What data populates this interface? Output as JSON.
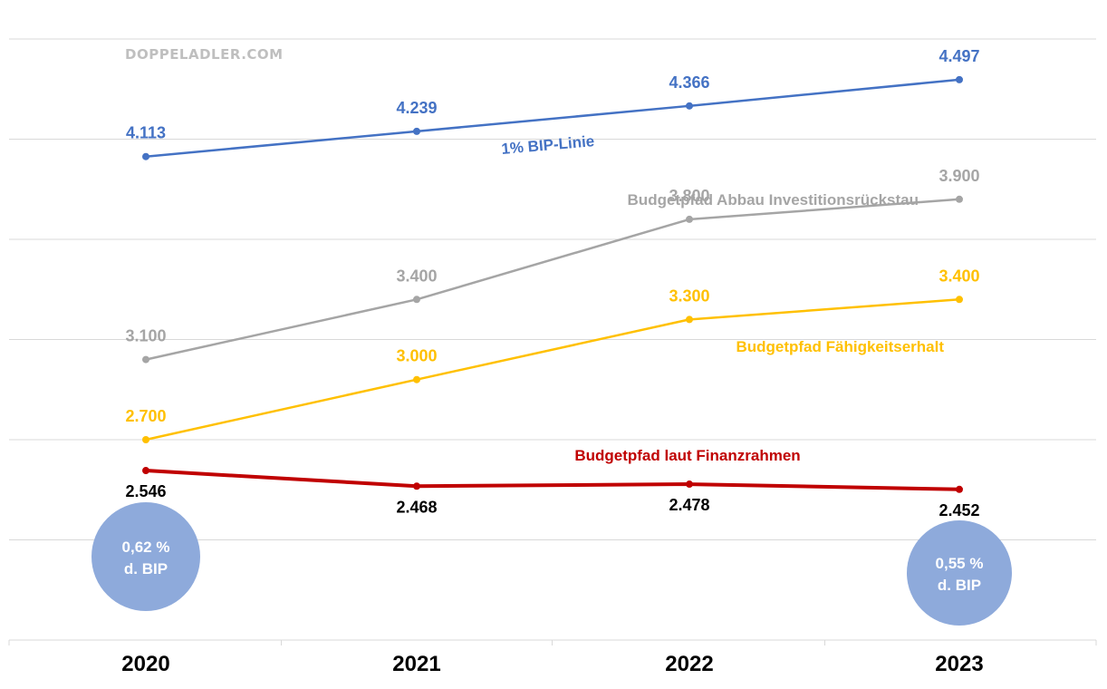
{
  "watermark": "DOPPELADLER.COM",
  "chart_data": {
    "type": "line",
    "title": "",
    "xlabel": "",
    "ylabel": "",
    "categories": [
      "2020",
      "2021",
      "2022",
      "2023"
    ],
    "ylim": [
      1700,
      4700
    ],
    "grid": true,
    "series": [
      {
        "name": "1% BIP-Linie",
        "color": "#4472c4",
        "values": [
          4113,
          4239,
          4366,
          4497
        ],
        "labels": [
          "4.113",
          "4.239",
          "4.366",
          "4.497"
        ],
        "label_position": "above"
      },
      {
        "name": "Budgetpfad Abbau Investitionsrückstau",
        "color": "#a5a5a5",
        "values": [
          3100,
          3400,
          3800,
          3900
        ],
        "labels": [
          "3.100",
          "3.400",
          "3.800",
          "3.900"
        ],
        "label_position": "above"
      },
      {
        "name": "Budgetpfad Fähigkeitserhalt",
        "color": "#ffc000",
        "values": [
          2700,
          3000,
          3300,
          3400
        ],
        "labels": [
          "2.700",
          "3.000",
          "3.300",
          "3.400"
        ],
        "label_position": "above"
      },
      {
        "name": "Budgetpfad laut Finanzrahmen",
        "color": "#c00000",
        "values": [
          2546,
          2468,
          2478,
          2452
        ],
        "labels": [
          "2.546",
          "2.468",
          "2.478",
          "2.452"
        ],
        "label_position": "below",
        "label_color": "#000000"
      }
    ],
    "annotations": [
      {
        "category": "2020",
        "lines": [
          "0,62 %",
          "d. BIP"
        ],
        "color": "#8eaadb"
      },
      {
        "category": "2023",
        "lines": [
          "0,55 %",
          "d. BIP"
        ],
        "color": "#8eaadb"
      }
    ]
  }
}
